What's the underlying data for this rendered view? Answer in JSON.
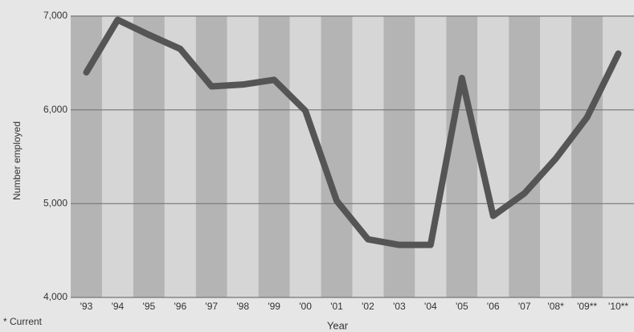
{
  "chart_data": {
    "type": "line",
    "y_label": "Number employed",
    "x_label": "Year",
    "footnote": "* Current",
    "categories": [
      "'93",
      "'94",
      "'95",
      "'96",
      "'97",
      "'98",
      "'99",
      "'00",
      "'01",
      "'02",
      "'03",
      "'04",
      "'05",
      "'06",
      "'07",
      "'08*",
      "'09**",
      "'10**"
    ],
    "values": [
      6400,
      6960,
      6800,
      6650,
      6250,
      6270,
      6320,
      5990,
      5030,
      4620,
      4560,
      4560,
      6340,
      4870,
      5110,
      5480,
      5920,
      6600
    ],
    "color": "#555555",
    "ylim": [
      4000,
      7000
    ],
    "yticks": [
      {
        "value": 4000,
        "label": "4,000"
      },
      {
        "value": 5000,
        "label": "5,000"
      },
      {
        "value": 6000,
        "label": "6,000"
      },
      {
        "value": 7000,
        "label": "7,000"
      }
    ],
    "grid": true
  }
}
